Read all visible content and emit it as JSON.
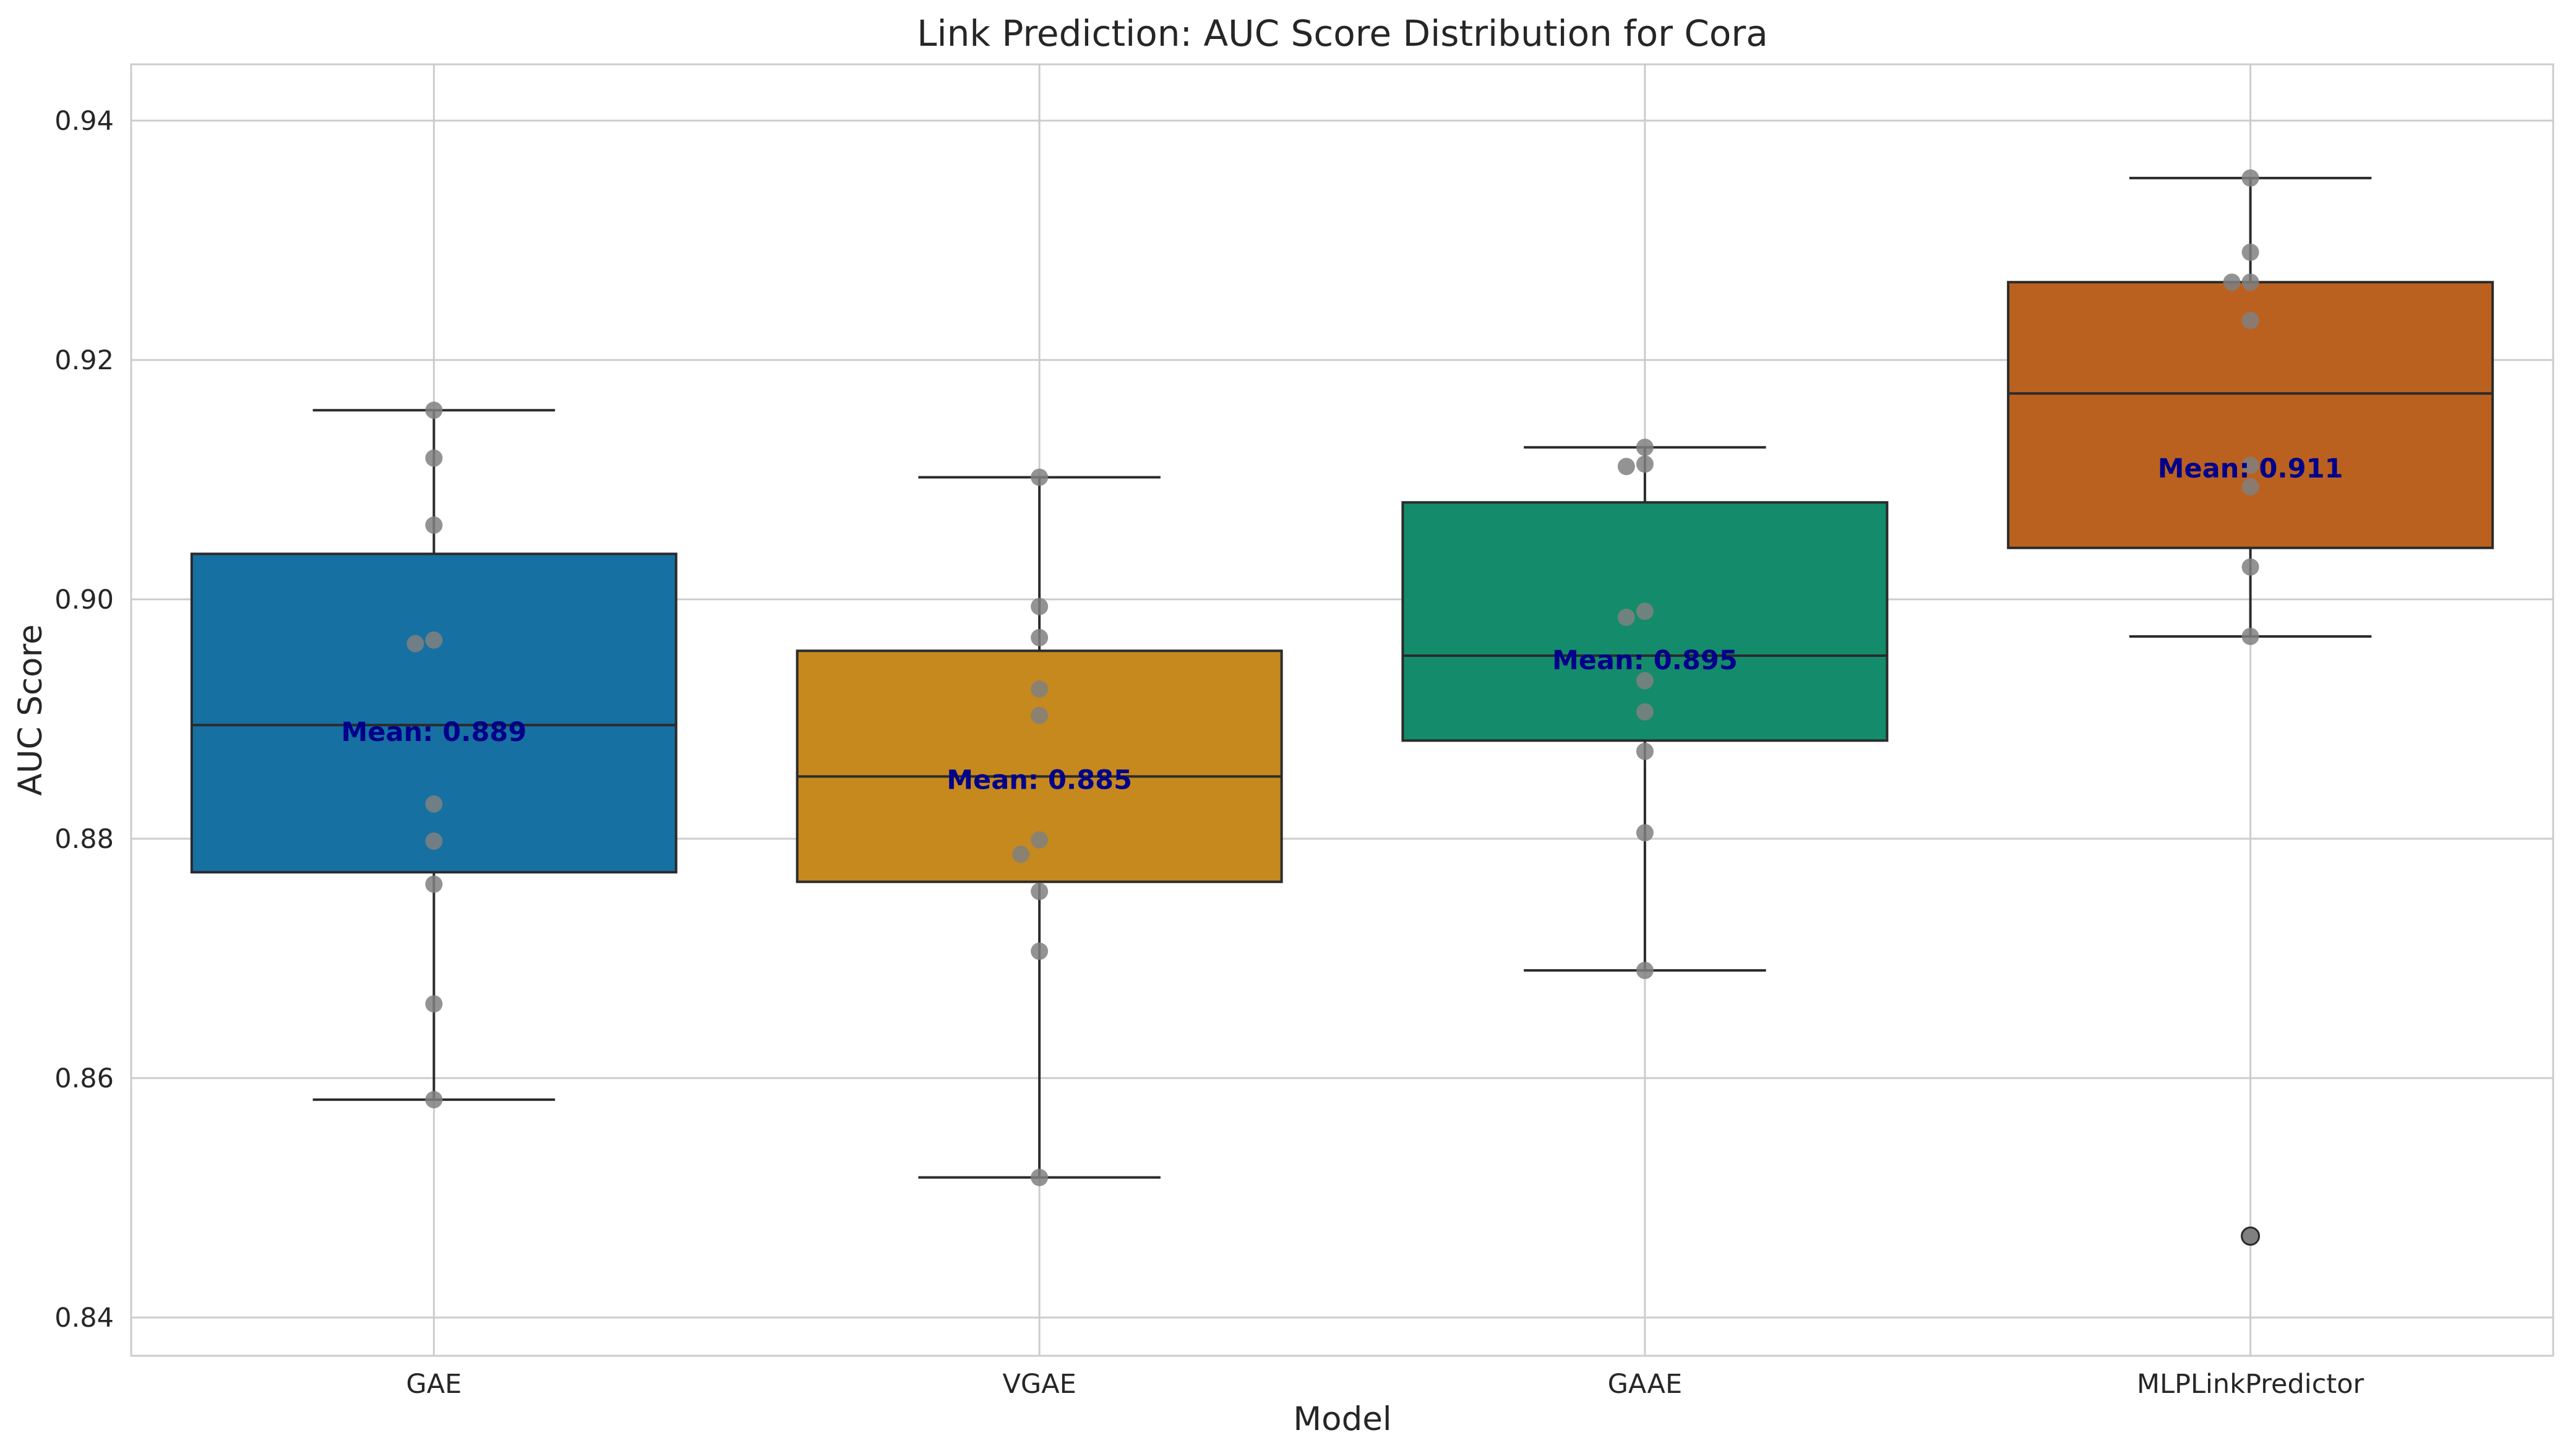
{
  "chart_data": {
    "type": "box",
    "title": "Link Prediction: AUC Score Distribution for Cora",
    "xlabel": "Model",
    "ylabel": "AUC Score",
    "ylim": [
      0.8368,
      0.9447
    ],
    "yticks": [
      0.84,
      0.86,
      0.88,
      0.9,
      0.92,
      0.94
    ],
    "ytick_labels": [
      "0.84",
      "0.86",
      "0.88",
      "0.90",
      "0.92",
      "0.94"
    ],
    "grid": true,
    "mean_label_color": "#00008b",
    "point_color": "#808080",
    "categories": [
      "GAE",
      "VGAE",
      "GAAE",
      "MLPLinkPredictor"
    ],
    "boxes": [
      {
        "name": "GAE",
        "color": "#1670a1",
        "q1": 0.8772,
        "median": 0.8895,
        "q3": 0.9038,
        "whisker_low": 0.8582,
        "whisker_high": 0.9158,
        "mean": 0.889,
        "mean_label": "Mean: 0.889",
        "points": [
          0.9158,
          0.9118,
          0.9062,
          0.8966,
          0.8963,
          0.8829,
          0.8798,
          0.8762,
          0.8662,
          0.8582
        ],
        "outliers": []
      },
      {
        "name": "VGAE",
        "color": "#c6891e",
        "q1": 0.8764,
        "median": 0.8852,
        "q3": 0.8957,
        "whisker_low": 0.8517,
        "whisker_high": 0.9102,
        "mean": 0.885,
        "mean_label": "Mean: 0.885",
        "points": [
          0.9102,
          0.8994,
          0.8968,
          0.8925,
          0.8903,
          0.8799,
          0.8787,
          0.8756,
          0.8706,
          0.8517
        ],
        "outliers": []
      },
      {
        "name": "GAAE",
        "color": "#148b6a",
        "q1": 0.8882,
        "median": 0.8953,
        "q3": 0.9081,
        "whisker_low": 0.869,
        "whisker_high": 0.9127,
        "mean": 0.895,
        "mean_label": "Mean: 0.895",
        "points": [
          0.9127,
          0.9113,
          0.9111,
          0.899,
          0.8985,
          0.8932,
          0.8906,
          0.8873,
          0.8805,
          0.869
        ],
        "outliers": []
      },
      {
        "name": "MLPLinkPredictor",
        "color": "#bb611f",
        "q1": 0.9043,
        "median": 0.9172,
        "q3": 0.9265,
        "whisker_low": 0.8969,
        "whisker_high": 0.9352,
        "mean": 0.911,
        "mean_label": "Mean: 0.911",
        "points": [
          0.9352,
          0.929,
          0.9265,
          0.9265,
          0.9233,
          0.9112,
          0.9094,
          0.9027,
          0.8969
        ],
        "outliers": [
          0.8468
        ]
      }
    ]
  }
}
